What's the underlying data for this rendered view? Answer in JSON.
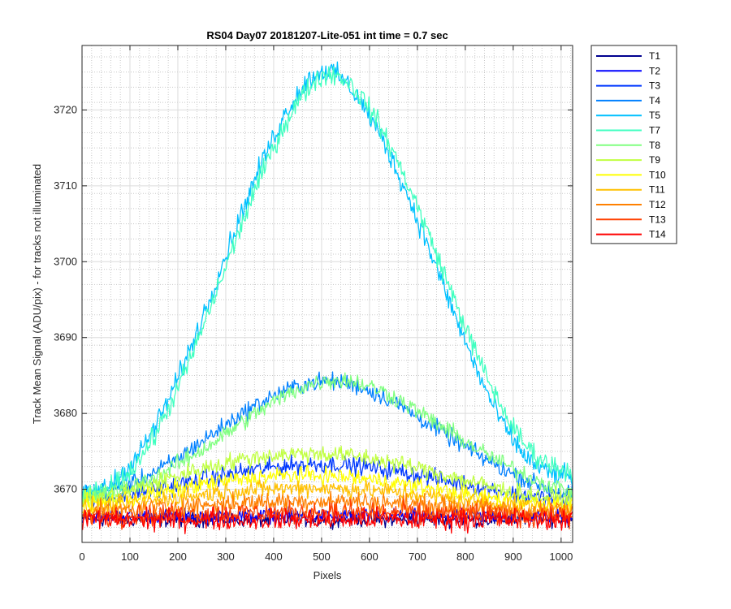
{
  "chart_data": {
    "type": "line",
    "title": "RS04 Day07 20181207-Lite-051 int time = 0.7 sec",
    "xlabel": "Pixels",
    "ylabel": "Track Mean Signal (ADU/pix) - for tracks not illuminated",
    "xlim": [
      0,
      1024
    ],
    "ylim": [
      3663,
      3728.5
    ],
    "xticks": [
      0,
      100,
      200,
      300,
      400,
      500,
      600,
      700,
      800,
      900,
      1000
    ],
    "yticks": [
      3670,
      3680,
      3690,
      3700,
      3710,
      3720
    ],
    "grid": {
      "major": true,
      "minor": true
    },
    "legend": "outside-right",
    "x": [
      0,
      25,
      50,
      75,
      100,
      125,
      150,
      175,
      200,
      225,
      250,
      275,
      300,
      325,
      350,
      375,
      400,
      425,
      450,
      475,
      500,
      525,
      550,
      575,
      600,
      625,
      650,
      675,
      700,
      725,
      750,
      775,
      800,
      825,
      850,
      875,
      900,
      925,
      950,
      975,
      1000,
      1024
    ],
    "series": [
      {
        "name": "T1",
        "color": "#00008f",
        "noise": 0.8,
        "values": [
          3666,
          3666,
          3666,
          3666,
          3666,
          3666,
          3666,
          3666,
          3666,
          3666,
          3666,
          3666,
          3666,
          3666,
          3666,
          3666,
          3666,
          3666,
          3666,
          3666,
          3666,
          3666,
          3666,
          3666,
          3666,
          3666,
          3666,
          3666,
          3666,
          3666,
          3666,
          3666,
          3666,
          3666,
          3666,
          3666,
          3666,
          3666,
          3666,
          3666,
          3666,
          3666
        ]
      },
      {
        "name": "T2",
        "color": "#0000ff",
        "noise": 0.8,
        "values": [
          3666.5,
          3666.5,
          3666.5,
          3666.5,
          3666.5,
          3666.5,
          3666.5,
          3666.5,
          3666.5,
          3666.5,
          3666.5,
          3666.5,
          3666.5,
          3666.5,
          3666.5,
          3666.5,
          3666.5,
          3666.5,
          3666.5,
          3666.5,
          3666.5,
          3666.5,
          3666.5,
          3666.5,
          3666.5,
          3666.5,
          3666.5,
          3666.5,
          3666.5,
          3666.5,
          3666.5,
          3666.5,
          3666.5,
          3666.5,
          3666.5,
          3666.5,
          3666.5,
          3666.5,
          3666.5,
          3666.5,
          3666.5,
          3666.5
        ]
      },
      {
        "name": "T3",
        "color": "#0038ff",
        "noise": 1.0,
        "values": [
          3668.5,
          3668.6,
          3668.8,
          3669.0,
          3669.3,
          3669.6,
          3669.9,
          3670.2,
          3670.6,
          3670.9,
          3671.3,
          3671.6,
          3671.9,
          3672.2,
          3672.5,
          3672.7,
          3672.9,
          3673.1,
          3673.2,
          3673.3,
          3673.3,
          3673.3,
          3673.2,
          3673.1,
          3672.9,
          3672.7,
          3672.5,
          3672.2,
          3671.9,
          3671.6,
          3671.3,
          3670.9,
          3670.6,
          3670.3,
          3670.0,
          3669.7,
          3669.4,
          3669.2,
          3669.0,
          3668.8,
          3668.7,
          3668.6
        ]
      },
      {
        "name": "T4",
        "color": "#0080ff",
        "noise": 1.0,
        "values": [
          3669.5,
          3669.6,
          3669.8,
          3670.2,
          3670.7,
          3671.4,
          3672.2,
          3673.1,
          3674.1,
          3675.2,
          3676.3,
          3677.4,
          3678.5,
          3679.6,
          3680.6,
          3681.5,
          3682.3,
          3683.0,
          3683.6,
          3684.0,
          3684.2,
          3684.2,
          3684.0,
          3683.6,
          3683.0,
          3682.3,
          3681.5,
          3680.6,
          3679.6,
          3678.6,
          3677.6,
          3676.6,
          3675.6,
          3674.6,
          3673.7,
          3672.8,
          3672.0,
          3671.3,
          3670.6,
          3670.1,
          3669.6,
          3669.3
        ]
      },
      {
        "name": "T5",
        "color": "#00c0ff",
        "noise": 1.2,
        "values": [
          3669.0,
          3669.4,
          3670.2,
          3671.4,
          3673.1,
          3675.3,
          3678.0,
          3681.1,
          3684.6,
          3688.4,
          3692.4,
          3696.6,
          3700.9,
          3705.1,
          3709.2,
          3713.0,
          3716.5,
          3719.6,
          3722.2,
          3724.1,
          3725.2,
          3725.0,
          3723.7,
          3721.7,
          3719.2,
          3716.3,
          3713.0,
          3709.4,
          3705.6,
          3701.6,
          3697.5,
          3693.4,
          3689.4,
          3685.6,
          3682.1,
          3679.0,
          3676.4,
          3674.4,
          3673.0,
          3672.2,
          3671.8,
          3671.5
        ]
      },
      {
        "name": "T7",
        "color": "#40ffc0",
        "noise": 1.2,
        "values": [
          3669.0,
          3669.3,
          3669.9,
          3670.9,
          3672.4,
          3674.4,
          3676.9,
          3679.9,
          3683.3,
          3687.0,
          3691.0,
          3695.1,
          3699.3,
          3703.5,
          3707.6,
          3711.5,
          3715.1,
          3718.3,
          3721.0,
          3723.1,
          3724.5,
          3724.8,
          3724.0,
          3722.4,
          3720.2,
          3717.5,
          3714.4,
          3711.0,
          3707.3,
          3703.4,
          3699.4,
          3695.4,
          3691.4,
          3687.6,
          3684.1,
          3680.9,
          3678.1,
          3675.9,
          3674.3,
          3673.3,
          3672.7,
          3672.3
        ]
      },
      {
        "name": "T8",
        "color": "#80ff80",
        "noise": 1.0,
        "values": [
          3669.0,
          3669.1,
          3669.4,
          3669.8,
          3670.3,
          3670.9,
          3671.6,
          3672.4,
          3673.3,
          3674.2,
          3675.2,
          3676.2,
          3677.3,
          3678.4,
          3679.5,
          3680.5,
          3681.5,
          3682.4,
          3683.2,
          3683.8,
          3684.2,
          3684.4,
          3684.4,
          3684.1,
          3683.6,
          3683.0,
          3682.2,
          3681.3,
          3680.3,
          3679.3,
          3678.3,
          3677.3,
          3676.3,
          3675.3,
          3674.4,
          3673.5,
          3672.7,
          3671.9,
          3671.2,
          3670.6,
          3670.1,
          3669.7
        ]
      },
      {
        "name": "T9",
        "color": "#c0ff40",
        "noise": 1.0,
        "values": [
          3668.5,
          3668.7,
          3669.0,
          3669.4,
          3669.8,
          3670.3,
          3670.8,
          3671.3,
          3671.8,
          3672.3,
          3672.7,
          3673.1,
          3673.5,
          3673.8,
          3674.1,
          3674.3,
          3674.5,
          3674.6,
          3674.7,
          3674.7,
          3674.7,
          3674.6,
          3674.5,
          3674.3,
          3674.1,
          3673.8,
          3673.5,
          3673.2,
          3672.8,
          3672.4,
          3672.0,
          3671.6,
          3671.2,
          3670.8,
          3670.4,
          3670.0,
          3669.7,
          3669.4,
          3669.1,
          3668.9,
          3668.7,
          3668.6
        ]
      },
      {
        "name": "T10",
        "color": "#ffff00",
        "noise": 1.0,
        "values": [
          3668.0,
          3668.1,
          3668.3,
          3668.5,
          3668.8,
          3669.1,
          3669.4,
          3669.7,
          3670.0,
          3670.3,
          3670.6,
          3670.9,
          3671.1,
          3671.3,
          3671.5,
          3671.6,
          3671.7,
          3671.8,
          3671.8,
          3671.8,
          3671.8,
          3671.7,
          3671.6,
          3671.5,
          3671.3,
          3671.1,
          3670.9,
          3670.6,
          3670.4,
          3670.1,
          3669.8,
          3669.6,
          3669.3,
          3669.1,
          3668.9,
          3668.7,
          3668.5,
          3668.3,
          3668.2,
          3668.1,
          3668.0,
          3668.0
        ]
      },
      {
        "name": "T11",
        "color": "#ffc000",
        "noise": 1.0,
        "values": [
          3667.5,
          3667.6,
          3667.7,
          3667.9,
          3668.1,
          3668.3,
          3668.5,
          3668.7,
          3668.9,
          3669.1,
          3669.3,
          3669.5,
          3669.7,
          3669.8,
          3669.9,
          3670.0,
          3670.1,
          3670.1,
          3670.2,
          3670.2,
          3670.2,
          3670.1,
          3670.1,
          3670.0,
          3669.9,
          3669.8,
          3669.6,
          3669.5,
          3669.3,
          3669.1,
          3668.9,
          3668.7,
          3668.5,
          3668.4,
          3668.2,
          3668.1,
          3667.9,
          3667.8,
          3667.7,
          3667.6,
          3667.6,
          3667.5
        ]
      },
      {
        "name": "T12",
        "color": "#ff8000",
        "noise": 1.1,
        "values": [
          3667.0,
          3667.0,
          3667.1,
          3667.2,
          3667.3,
          3667.4,
          3667.5,
          3667.6,
          3667.7,
          3667.8,
          3667.9,
          3668.0,
          3668.1,
          3668.2,
          3668.3,
          3668.3,
          3668.4,
          3668.4,
          3668.4,
          3668.5,
          3668.5,
          3668.4,
          3668.4,
          3668.4,
          3668.3,
          3668.3,
          3668.2,
          3668.1,
          3668.0,
          3667.9,
          3667.8,
          3667.7,
          3667.6,
          3667.5,
          3667.4,
          3667.3,
          3667.2,
          3667.2,
          3667.1,
          3667.1,
          3667.0,
          3667.0
        ]
      },
      {
        "name": "T13",
        "color": "#ff4000",
        "noise": 1.2,
        "values": [
          3666.5,
          3666.5,
          3666.5,
          3666.5,
          3666.6,
          3666.6,
          3666.6,
          3666.7,
          3666.7,
          3666.7,
          3666.8,
          3666.8,
          3666.8,
          3666.9,
          3666.9,
          3666.9,
          3666.9,
          3667.0,
          3667.0,
          3667.0,
          3667.0,
          3667.0,
          3667.0,
          3667.0,
          3666.9,
          3666.9,
          3666.9,
          3666.9,
          3666.8,
          3666.8,
          3666.8,
          3666.7,
          3666.7,
          3666.7,
          3666.6,
          3666.6,
          3666.6,
          3666.5,
          3666.5,
          3666.5,
          3666.5,
          3666.5
        ]
      },
      {
        "name": "T14",
        "color": "#ff0000",
        "noise": 1.2,
        "values": [
          3666.0,
          3666.0,
          3666.0,
          3666.0,
          3666.0,
          3666.0,
          3666.0,
          3666.0,
          3666.0,
          3666.0,
          3666.0,
          3666.0,
          3666.0,
          3666.0,
          3666.0,
          3666.0,
          3666.0,
          3666.0,
          3666.0,
          3666.0,
          3666.0,
          3666.0,
          3666.0,
          3666.0,
          3666.0,
          3666.0,
          3666.0,
          3666.0,
          3666.0,
          3666.0,
          3666.0,
          3666.0,
          3666.0,
          3666.0,
          3666.0,
          3666.0,
          3666.0,
          3666.0,
          3666.0,
          3666.0,
          3666.0,
          3666.0
        ]
      }
    ]
  }
}
